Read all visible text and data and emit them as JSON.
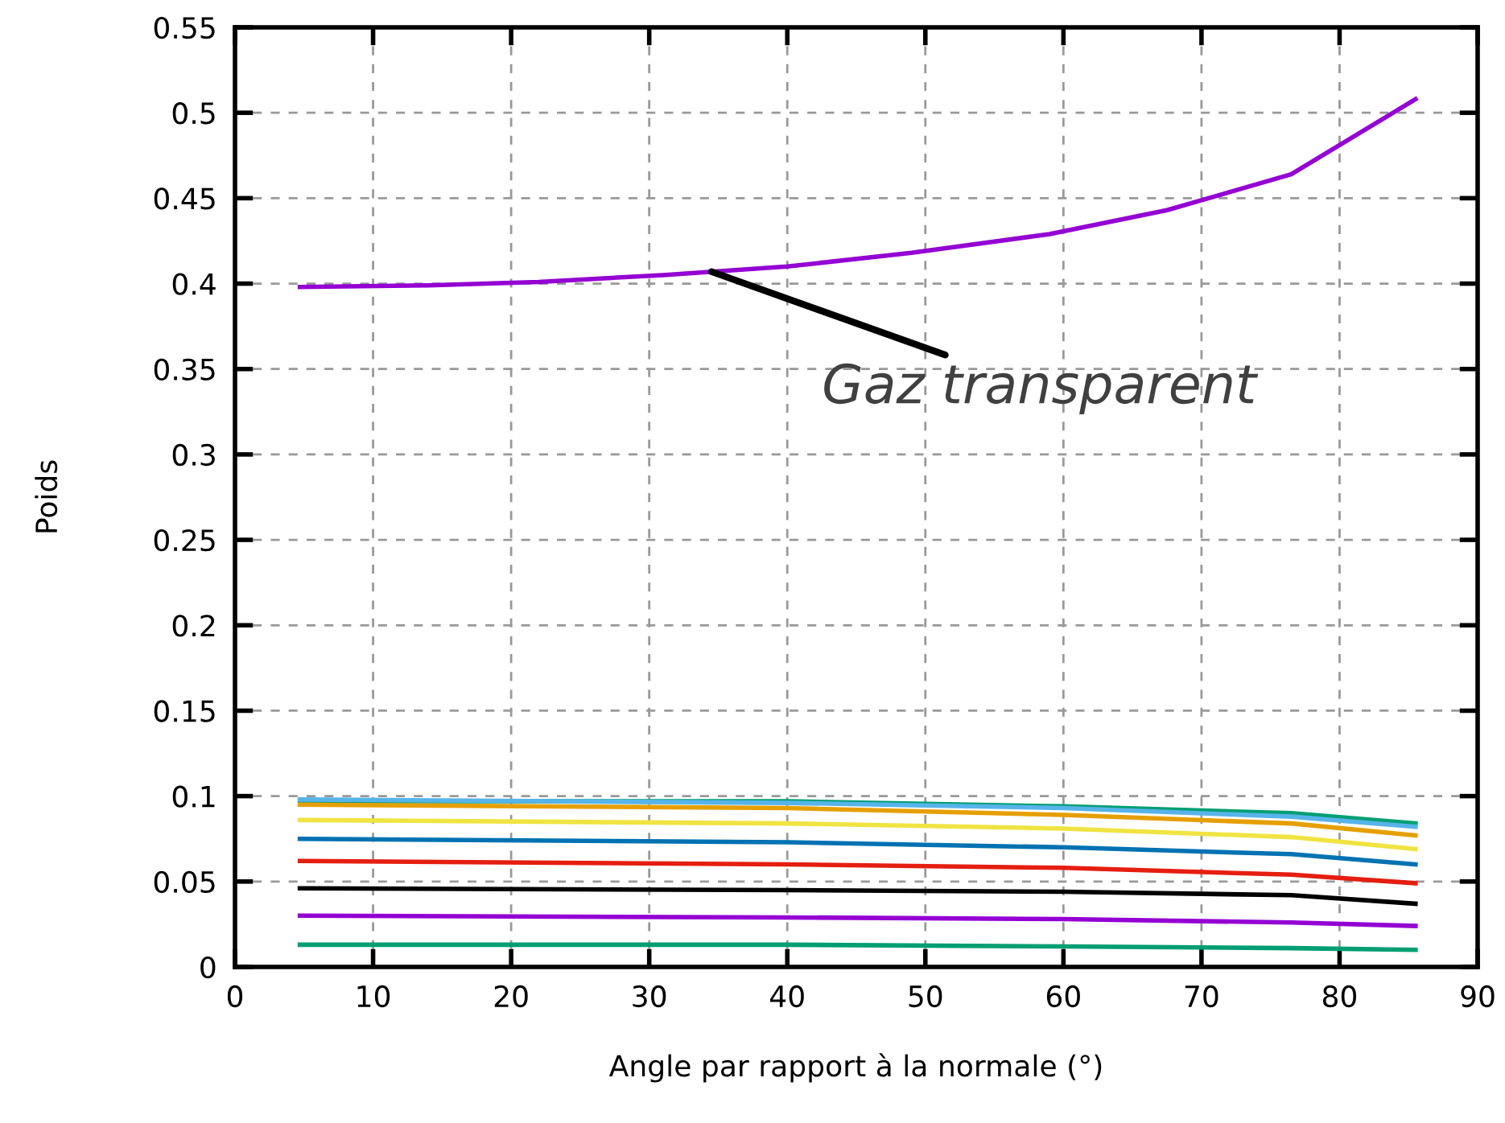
{
  "chart_data": {
    "type": "line",
    "xlabel": "Angle par rapport à la normale (°)",
    "ylabel": "Poids",
    "xlim": [
      0,
      90
    ],
    "xticks": [
      0,
      10,
      20,
      30,
      40,
      50,
      60,
      70,
      80,
      90
    ],
    "ylim": [
      0,
      0.55
    ],
    "yticks": [
      0,
      0.05,
      0.1,
      0.15,
      0.2,
      0.25,
      0.3,
      0.35,
      0.4,
      0.45,
      0.5,
      0.55
    ],
    "grid": true,
    "legend": false,
    "annotations": [
      {
        "text": "Gaz transparent",
        "x": 34.5,
        "y": 0.407
      }
    ],
    "series": [
      {
        "color": "#9400d3",
        "x": [
          4.7,
          14,
          22,
          31,
          40,
          49,
          59,
          67.5,
          76.5,
          85.5
        ],
        "values": [
          0.398,
          0.399,
          0.401,
          0.405,
          0.41,
          0.418,
          0.429,
          0.443,
          0.464,
          0.508
        ]
      },
      {
        "color": "#009e73",
        "x": [
          4.7,
          40,
          60,
          76.5,
          85.5
        ],
        "values": [
          0.097,
          0.097,
          0.094,
          0.09,
          0.084
        ]
      },
      {
        "color": "#56b4e9",
        "x": [
          4.7,
          40,
          60,
          76.5,
          85.5
        ],
        "values": [
          0.098,
          0.096,
          0.093,
          0.088,
          0.082
        ]
      },
      {
        "color": "#e69f00",
        "x": [
          4.7,
          40,
          60,
          76.5,
          85.5
        ],
        "values": [
          0.095,
          0.093,
          0.089,
          0.084,
          0.077
        ]
      },
      {
        "color": "#f0e442",
        "x": [
          4.7,
          40,
          60,
          76.5,
          85.5
        ],
        "values": [
          0.086,
          0.084,
          0.081,
          0.076,
          0.069
        ]
      },
      {
        "color": "#0072b2",
        "x": [
          4.7,
          40,
          60,
          76.5,
          85.5
        ],
        "values": [
          0.075,
          0.073,
          0.07,
          0.066,
          0.06
        ]
      },
      {
        "color": "#e51e10",
        "x": [
          4.7,
          40,
          60,
          76.5,
          85.5
        ],
        "values": [
          0.062,
          0.06,
          0.058,
          0.054,
          0.049
        ]
      },
      {
        "color": "#000000",
        "x": [
          4.7,
          40,
          60,
          76.5,
          85.5
        ],
        "values": [
          0.046,
          0.045,
          0.044,
          0.042,
          0.037
        ]
      },
      {
        "color": "#9400d3",
        "x": [
          4.7,
          40,
          60,
          76.5,
          85.5
        ],
        "values": [
          0.03,
          0.029,
          0.028,
          0.026,
          0.024
        ]
      },
      {
        "color": "#009e73",
        "x": [
          4.7,
          40,
          60,
          76.5,
          85.5
        ],
        "values": [
          0.013,
          0.013,
          0.012,
          0.011,
          0.01
        ]
      }
    ]
  }
}
